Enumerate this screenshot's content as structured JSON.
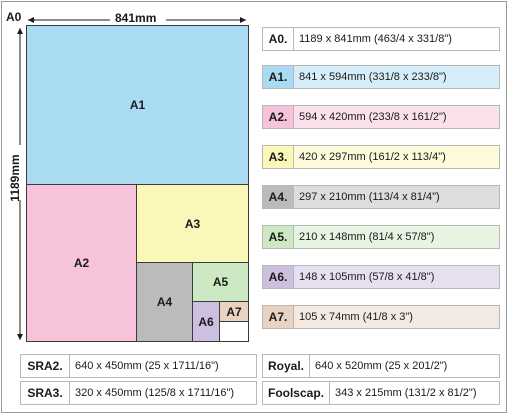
{
  "header": {
    "a0_label": "A0",
    "width_label": "841mm",
    "height_label": "1189mm"
  },
  "diagram": {
    "a1": "A1",
    "a2": "A2",
    "a3": "A3",
    "a4": "A4",
    "a5": "A5",
    "a6": "A6",
    "a7": "A7"
  },
  "legend": [
    {
      "tag": "A0.",
      "desc": "1189 x 841mm (463/4 x 331/8\")",
      "color": "#ffffff"
    },
    {
      "tag": "A1.",
      "desc": "841 x 594mm (331/8 x 233/8\")",
      "color": "#a9dcf3"
    },
    {
      "tag": "A2.",
      "desc": "594 x 420mm (233/8 x 161/2\")",
      "color": "#f6c3da"
    },
    {
      "tag": "A3.",
      "desc": "420 x 297mm (161/2 x 113/4\")",
      "color": "#fbf7b8"
    },
    {
      "tag": "A4.",
      "desc": "297 x 210mm (113/4 x 81/4\")",
      "color": "#bbbbbb"
    },
    {
      "tag": "A5.",
      "desc": "210 x 148mm (81/4 x 57/8\")",
      "color": "#cde9c3"
    },
    {
      "tag": "A6.",
      "desc": "148 x 105mm (57/8 x 41/8\")",
      "color": "#cdbfe0"
    },
    {
      "tag": "A7.",
      "desc": "105 x 74mm (41/8 x 3\")",
      "color": "#e8d3c3"
    }
  ],
  "bottom": [
    {
      "tag": "SRA2.",
      "desc": "640 x 450mm (25 x 1711/16\")"
    },
    {
      "tag": "Royal.",
      "desc": "640 x 520mm (25 x 201/2\")"
    },
    {
      "tag": "SRA3.",
      "desc": "320 x 450mm (125/8 x 1711/16\")"
    },
    {
      "tag": "Foolscap.",
      "desc": "343 x 215mm (131/2 x 81/2\")"
    }
  ],
  "colors": {
    "a1": "#a9dcf3",
    "a2": "#f6c3da",
    "a3": "#fbf7b8",
    "a4": "#bbbbbb",
    "a5": "#cde9c3",
    "a6": "#cdbfe0",
    "a7": "#e8d3c3"
  }
}
